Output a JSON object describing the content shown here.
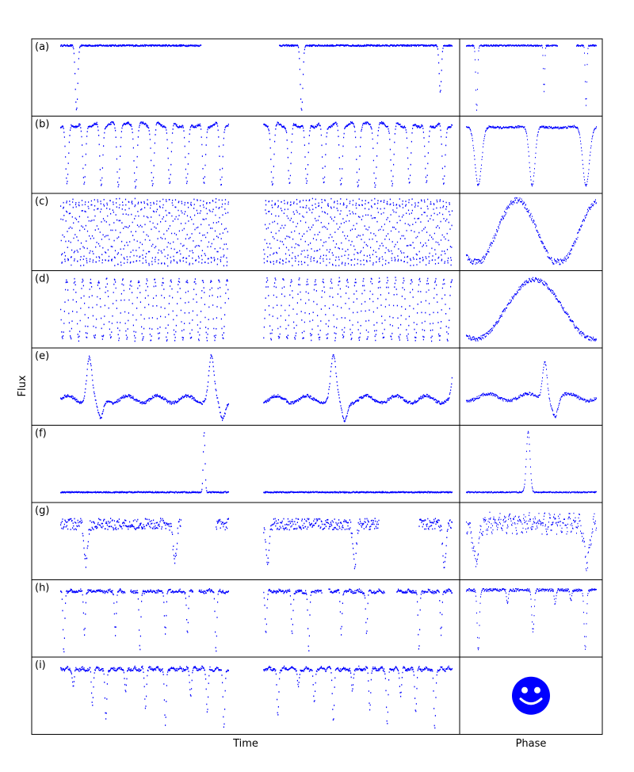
{
  "chart_data": {
    "type": "scatter",
    "xlabel_left": "Time",
    "xlabel_right": "Phase",
    "ylabel": "Flux",
    "colors": {
      "points": "#0000ff",
      "frame": "#000000"
    },
    "panels": [
      {
        "label": "(a)",
        "pattern": "deep-narrow-eclipses"
      },
      {
        "label": "(b)",
        "pattern": "regular-eclipses"
      },
      {
        "label": "(c)",
        "pattern": "dense-pulsation"
      },
      {
        "label": "(d)",
        "pattern": "sinusoidal-variation"
      },
      {
        "label": "(e)",
        "pattern": "heartbeat"
      },
      {
        "label": "(f)",
        "pattern": "single-flare"
      },
      {
        "label": "(g)",
        "pattern": "noisy-eclipses"
      },
      {
        "label": "(h)",
        "pattern": "mixed-eclipses"
      },
      {
        "label": "(i)",
        "pattern": "irregular-dips",
        "right_icon": "smiley-face-icon"
      }
    ]
  }
}
